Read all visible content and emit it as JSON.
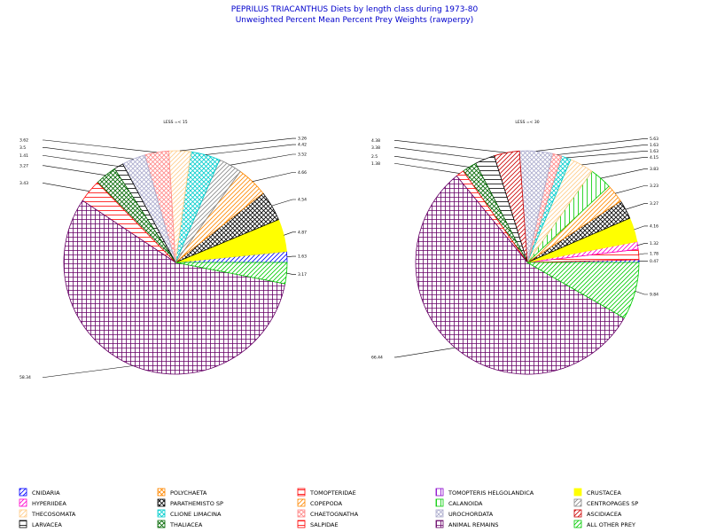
{
  "header": {
    "title": "PEPRILUS TRIACANTHUS Diets by length class during 1973-80",
    "subtitle": "Unweighted Percent Mean Percent Prey Weights (rawperpy)"
  },
  "colors": {
    "title": "#0000cc"
  },
  "categories": [
    {
      "name": "CNIDARIA",
      "color": "#0000ff",
      "pattern": "diag"
    },
    {
      "name": "POLYCHAETA",
      "color": "#ff8800",
      "pattern": "cross"
    },
    {
      "name": "TOMOPTERIDAE",
      "color": "#ff0000",
      "pattern": "hstripe"
    },
    {
      "name": "TOMOPTERIS HELGOLANDICA",
      "color": "#8800cc",
      "pattern": "vstripe"
    },
    {
      "name": "CRUSTACEA",
      "color": "#ffff00",
      "pattern": "solid"
    },
    {
      "name": "HYPERIIDEA",
      "color": "#ff00cc",
      "pattern": "diag"
    },
    {
      "name": "PARATHEMISTO SP",
      "color": "#000000",
      "pattern": "cross"
    },
    {
      "name": "COPEPODA",
      "color": "#ff8800",
      "pattern": "diag"
    },
    {
      "name": "CALANOIDA",
      "color": "#00cc00",
      "pattern": "vstripe"
    },
    {
      "name": "CENTROPAGES SP",
      "color": "#888888",
      "pattern": "diag"
    },
    {
      "name": "THECOSOMATA",
      "color": "#ffcc88",
      "pattern": "diag"
    },
    {
      "name": "CLIONE LIMACINA",
      "color": "#00cccc",
      "pattern": "cross"
    },
    {
      "name": "CHAETOGNATHA",
      "color": "#ff8888",
      "pattern": "cross"
    },
    {
      "name": "UROCHORDATA",
      "color": "#aaaacc",
      "pattern": "cross"
    },
    {
      "name": "ASCIDIACEA",
      "color": "#cc0000",
      "pattern": "diag"
    },
    {
      "name": "LARVACEA",
      "color": "#000000",
      "pattern": "hstripe"
    },
    {
      "name": "THALIACEA",
      "color": "#006600",
      "pattern": "cross"
    },
    {
      "name": "SALPIDAE",
      "color": "#ff0000",
      "pattern": "hstripe"
    },
    {
      "name": "ANIMAL REMAINS",
      "color": "#660066",
      "pattern": "grid"
    },
    {
      "name": "ALL OTHER PREY",
      "color": "#00cc00",
      "pattern": "diag"
    }
  ],
  "chart_data": [
    {
      "type": "pie",
      "title": "LESS =< 15",
      "slices": [
        {
          "label": "CNIDARIA",
          "value": 1.63,
          "value_label": "1.63"
        },
        {
          "label": "CRUSTACEA",
          "value": 4.87,
          "value_label": "4.87"
        },
        {
          "label": "PARATHEMISTO SP",
          "value": 4.54,
          "value_label": "4.54"
        },
        {
          "label": "COPEPODA",
          "value": 4.66,
          "value_label": "4.66"
        },
        {
          "label": "CENTROPAGES SP",
          "value": 3.52,
          "value_label": "3.52"
        },
        {
          "label": "CLIONE LIMACINA",
          "value": 4.42,
          "value_label": "4.42"
        },
        {
          "label": "THECOSOMATA",
          "value": 3.26,
          "value_label": "3.26"
        },
        {
          "label": "CHAETOGNATHA",
          "value": 3.62,
          "value_label": "3.62"
        },
        {
          "label": "UROCHORDATA",
          "value": 3.5,
          "value_label": "3.5"
        },
        {
          "label": "LARVACEA",
          "value": 1.41,
          "value_label": "1.41"
        },
        {
          "label": "THALIACEA",
          "value": 3.27,
          "value_label": "3.27"
        },
        {
          "label": "SALPIDAE",
          "value": 3.43,
          "value_label": "3.43"
        },
        {
          "label": "ANIMAL REMAINS",
          "value": 58.34,
          "value_label": "58.34"
        },
        {
          "label": "ALL OTHER PREY",
          "value": 3.17,
          "value_label": "3.17"
        }
      ]
    },
    {
      "type": "pie",
      "title": "LESS =< 30",
      "slices": [
        {
          "label": "CNIDARIA",
          "value": 0.47,
          "value_label": "0.47"
        },
        {
          "label": "TOMOPTERIDAE",
          "value": 1.78,
          "value_label": "1.78"
        },
        {
          "label": "HYPERIIDEA",
          "value": 1.32,
          "value_label": "1.32"
        },
        {
          "label": "CRUSTACEA",
          "value": 4.16,
          "value_label": "4.16"
        },
        {
          "label": "PARATHEMISTO SP",
          "value": 3.27,
          "value_label": "3.27"
        },
        {
          "label": "COPEPODA",
          "value": 3.23,
          "value_label": "3.23"
        },
        {
          "label": "CALANOIDA",
          "value": 3.83,
          "value_label": "3.83"
        },
        {
          "label": "THECOSOMATA",
          "value": 4.15,
          "value_label": "4.15"
        },
        {
          "label": "CLIONE LIMACINA",
          "value": 1.63,
          "value_label": "1.63"
        },
        {
          "label": "CHAETOGNATHA",
          "value": 1.63,
          "value_label": "1.63"
        },
        {
          "label": "UROCHORDATA",
          "value": 5.63,
          "value_label": "5.63"
        },
        {
          "label": "ASCIDIACEA",
          "value": 4.38,
          "value_label": "4.38"
        },
        {
          "label": "LARVACEA",
          "value": 3.38,
          "value_label": "3.38"
        },
        {
          "label": "THALIACEA",
          "value": 2.5,
          "value_label": "2.5"
        },
        {
          "label": "SALPIDAE",
          "value": 1.38,
          "value_label": "1.38"
        },
        {
          "label": "ANIMAL REMAINS",
          "value": 66.44,
          "value_label": "66.44"
        },
        {
          "label": "ALL OTHER PREY",
          "value": 9.84,
          "value_label": "9.84"
        }
      ]
    }
  ]
}
